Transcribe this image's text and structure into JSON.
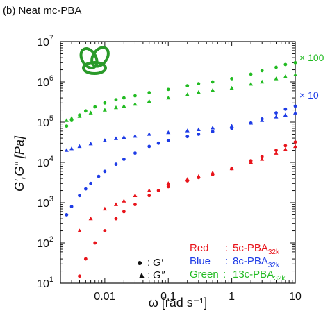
{
  "chart_data": {
    "type": "scatter",
    "title": "(b) Neat mc-PBA",
    "x_label": "ω [rad s⁻¹]",
    "y_label": "G′,G″ [Pa]",
    "log_x": true,
    "log_y": true,
    "xlim": [
      0.002,
      10
    ],
    "ylim": [
      10,
      10000000
    ],
    "xticks": [
      0.01,
      0.1,
      1,
      10
    ],
    "yticks": [
      {
        "value": 10,
        "label": "10",
        "exp": "1"
      },
      {
        "value": 100,
        "label": "10",
        "exp": "2"
      },
      {
        "value": 1000,
        "label": "10",
        "exp": "3"
      },
      {
        "value": 10000,
        "label": "10",
        "exp": "4"
      },
      {
        "value": 100000,
        "label": "10",
        "exp": "5"
      },
      {
        "value": 1000000,
        "label": "10",
        "exp": "6"
      },
      {
        "value": 10000000,
        "label": "10",
        "exp": "7"
      }
    ],
    "annotations": [
      {
        "text": "× 100",
        "color": "#22bb22"
      },
      {
        "text": "× 10",
        "color": "#1e3ce6"
      }
    ],
    "series": [
      {
        "name": "5c-PBA",
        "subscript": "32k",
        "color_word": "Red",
        "color": "#e8141b",
        "symbol_label": "G′",
        "marker": "circle",
        "x": [
          0.004,
          0.005,
          0.007,
          0.01,
          0.015,
          0.02,
          0.03,
          0.05,
          0.07,
          0.1,
          0.2,
          0.3,
          0.5,
          1,
          2,
          3,
          5,
          7,
          10
        ],
        "values": [
          15,
          40,
          100,
          200,
          400,
          600,
          900,
          1500,
          2000,
          2500,
          3500,
          4200,
          5000,
          7000,
          11000,
          14000,
          20000,
          26000,
          32000
        ]
      },
      {
        "name": "5c-PBA",
        "subscript": "32k",
        "color_word": "Red",
        "color": "#e8141b",
        "symbol_label": "G″",
        "marker": "triangle",
        "x": [
          0.004,
          0.006,
          0.01,
          0.015,
          0.02,
          0.03,
          0.05,
          0.1,
          0.2,
          0.3,
          0.5,
          1,
          2,
          3,
          5,
          7,
          10
        ],
        "values": [
          200,
          400,
          700,
          900,
          1100,
          1500,
          2000,
          3000,
          3800,
          4500,
          5500,
          7000,
          10000,
          12000,
          17000,
          21000,
          25000
        ]
      },
      {
        "name": "8c-PBA",
        "subscript": "32k",
        "color_word": "Blue",
        "color": "#1e3ce6",
        "symbol_label": "G′",
        "marker": "circle",
        "x": [
          0.0025,
          0.003,
          0.004,
          0.005,
          0.006,
          0.008,
          0.01,
          0.015,
          0.02,
          0.03,
          0.05,
          0.07,
          0.1,
          0.2,
          0.3,
          0.5,
          1,
          2,
          3,
          5,
          7,
          10
        ],
        "values": [
          500,
          800,
          1500,
          2200,
          3000,
          4500,
          6000,
          9000,
          12000,
          17000,
          25000,
          30000,
          35000,
          44000,
          50000,
          58000,
          70000,
          95000,
          120000,
          170000,
          210000,
          250000
        ]
      },
      {
        "name": "8c-PBA",
        "subscript": "32k",
        "color_word": "Blue",
        "color": "#1e3ce6",
        "symbol_label": "G″",
        "marker": "triangle",
        "x": [
          0.0025,
          0.003,
          0.004,
          0.006,
          0.01,
          0.015,
          0.02,
          0.03,
          0.05,
          0.1,
          0.2,
          0.3,
          0.5,
          1,
          2,
          3,
          5,
          7,
          10
        ],
        "values": [
          20000,
          22000,
          25000,
          29000,
          35000,
          39000,
          42000,
          45000,
          50000,
          55000,
          61000,
          65000,
          72000,
          80000,
          95000,
          110000,
          135000,
          150000,
          170000
        ]
      },
      {
        "name": "13c-PBA",
        "subscript": "32k",
        "color_word": "Green",
        "color": "#22bb22",
        "symbol_label": "G′",
        "marker": "circle",
        "x": [
          0.0025,
          0.003,
          0.004,
          0.005,
          0.007,
          0.01,
          0.015,
          0.02,
          0.03,
          0.05,
          0.1,
          0.2,
          0.3,
          0.5,
          1,
          2,
          3,
          5,
          7,
          10
        ],
        "values": [
          80000,
          110000,
          150000,
          190000,
          240000,
          300000,
          360000,
          400000,
          450000,
          540000,
          650000,
          800000,
          900000,
          1000000,
          1200000,
          1550000,
          1900000,
          2300000,
          2700000,
          3000000
        ]
      },
      {
        "name": "13c-PBA",
        "subscript": "32k",
        "color_word": "Green",
        "color": "#22bb22",
        "symbol_label": "G″",
        "marker": "triangle",
        "x": [
          0.0025,
          0.003,
          0.004,
          0.006,
          0.01,
          0.015,
          0.02,
          0.03,
          0.05,
          0.1,
          0.2,
          0.3,
          0.5,
          1,
          2,
          3,
          5,
          7,
          10
        ],
        "values": [
          110000,
          125000,
          140000,
          170000,
          200000,
          230000,
          250000,
          280000,
          330000,
          400000,
          480000,
          550000,
          620000,
          700000,
          880000,
          1000000,
          1200000,
          1350000,
          1500000
        ]
      }
    ]
  }
}
